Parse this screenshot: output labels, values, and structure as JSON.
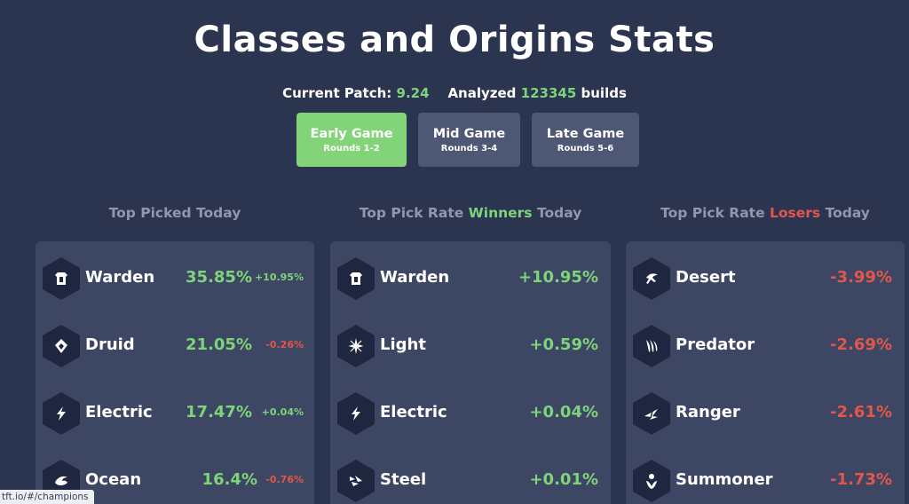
{
  "page": {
    "title": "Classes and Origins Stats",
    "patch_label": "Current Patch:",
    "patch_value": "9.24",
    "analyzed_label": "Analyzed",
    "analyzed_value": "123345",
    "analyzed_suffix": "builds"
  },
  "phases": [
    {
      "name": "Early Game",
      "sub": "Rounds 1-2",
      "active": true
    },
    {
      "name": "Mid Game",
      "sub": "Rounds 3-4",
      "active": false
    },
    {
      "name": "Late Game",
      "sub": "Rounds 5-6",
      "active": false
    }
  ],
  "columns": {
    "picked": {
      "title": "Top Picked Today"
    },
    "winners": {
      "prefix": "Top Pick Rate",
      "highlight": "Winners",
      "suffix": "Today"
    },
    "losers": {
      "prefix": "Top Pick Rate",
      "highlight": "Losers",
      "suffix": "Today"
    }
  },
  "picked": [
    {
      "name": "Warden",
      "icon": "warden-icon",
      "pct": "35.85%",
      "delta": "+10.95%",
      "delta_dir": "up"
    },
    {
      "name": "Druid",
      "icon": "druid-icon",
      "pct": "21.05%",
      "delta": "-0.26%",
      "delta_dir": "down"
    },
    {
      "name": "Electric",
      "icon": "electric-icon",
      "pct": "17.47%",
      "delta": "+0.04%",
      "delta_dir": "up"
    },
    {
      "name": "Ocean",
      "icon": "ocean-icon",
      "pct": "16.4%",
      "delta": "-0.76%",
      "delta_dir": "down"
    }
  ],
  "winners": [
    {
      "name": "Warden",
      "icon": "warden-icon",
      "pct": "+10.95%"
    },
    {
      "name": "Light",
      "icon": "light-icon",
      "pct": "+0.59%"
    },
    {
      "name": "Electric",
      "icon": "electric-icon",
      "pct": "+0.04%"
    },
    {
      "name": "Steel",
      "icon": "steel-icon",
      "pct": "+0.01%"
    }
  ],
  "losers": [
    {
      "name": "Desert",
      "icon": "desert-icon",
      "pct": "-3.99%"
    },
    {
      "name": "Predator",
      "icon": "predator-icon",
      "pct": "-2.69%"
    },
    {
      "name": "Ranger",
      "icon": "ranger-icon",
      "pct": "-2.61%"
    },
    {
      "name": "Summoner",
      "icon": "summoner-icon",
      "pct": "-1.73%"
    }
  ],
  "status_bar": {
    "url": "tft.io/#/champions"
  },
  "colors": {
    "background": "#2c3550",
    "card": "#3d4663",
    "accent_green": "#7ed47a",
    "accent_red": "#e2574c",
    "active_phase": "#83d478"
  }
}
